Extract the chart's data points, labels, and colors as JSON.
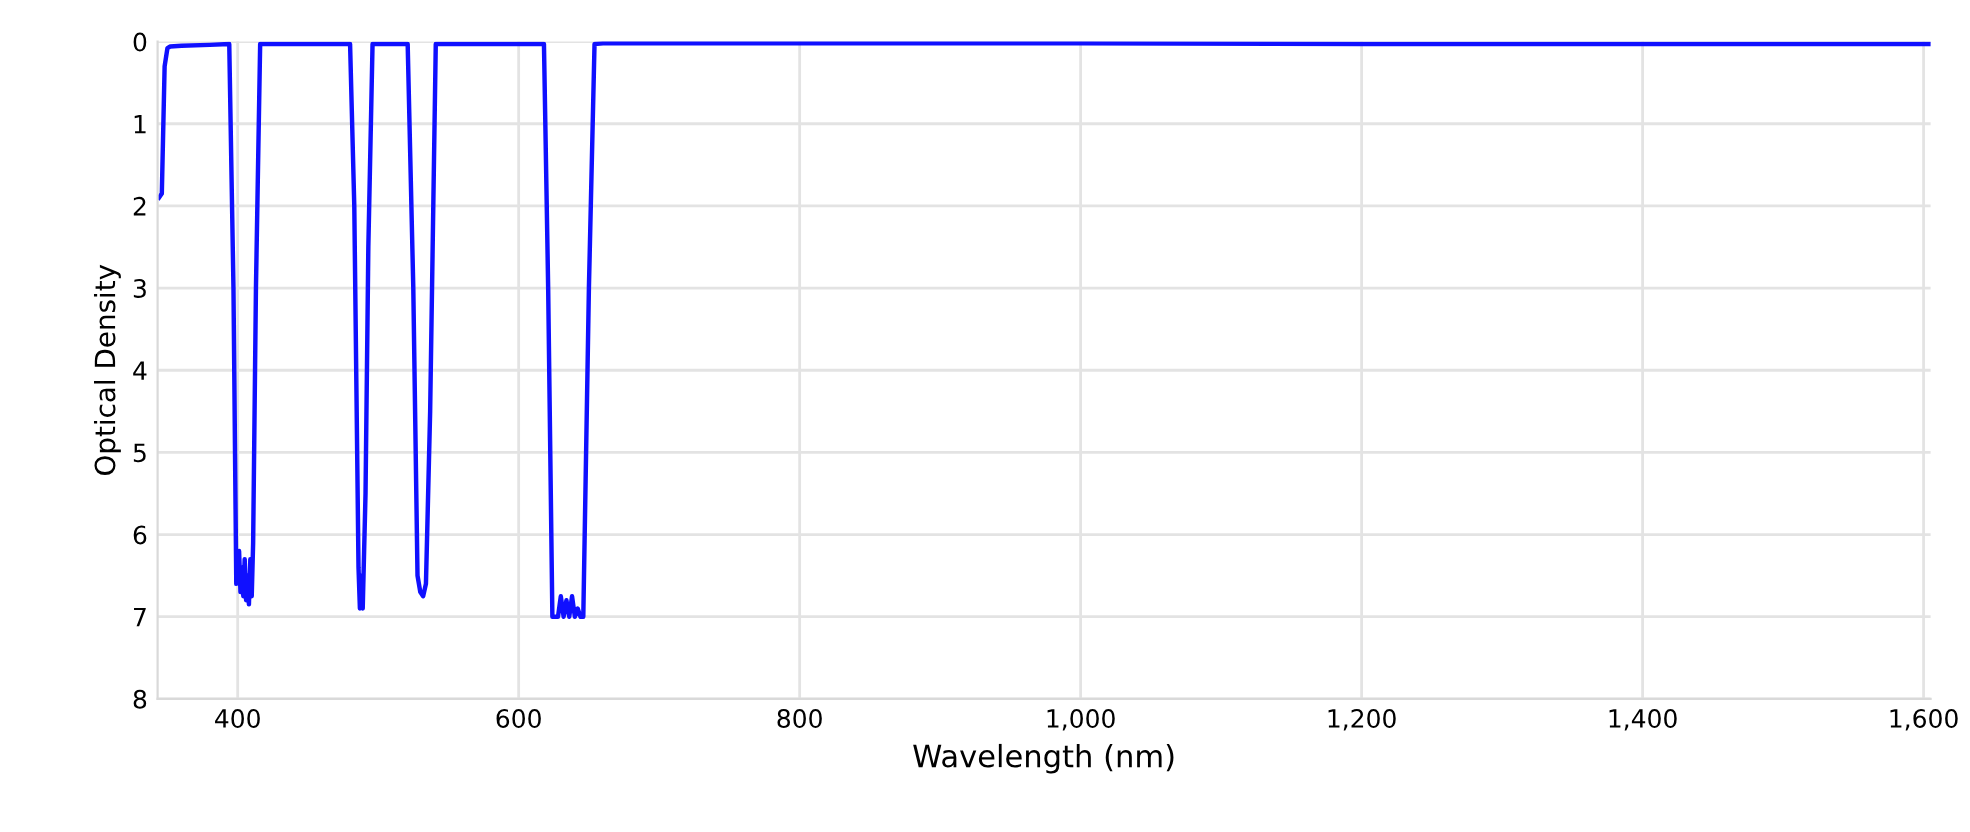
{
  "chart_data": {
    "type": "line",
    "xlabel": "Wavelength (nm)",
    "ylabel": "Optical Density",
    "series": [
      {
        "color": "#1010ff",
        "x": [
          344,
          346,
          348,
          350,
          352,
          360,
          380,
          394,
          397,
          399,
          401,
          402,
          403,
          404,
          405,
          406,
          407,
          408,
          409,
          410,
          411,
          413,
          416,
          440,
          480,
          483,
          486,
          487,
          488,
          489,
          490,
          491,
          493,
          496,
          500,
          521,
          525,
          528,
          530,
          532,
          534,
          537,
          541,
          545,
          580,
          618,
          621,
          624,
          628,
          630,
          632,
          634,
          636,
          638,
          640,
          642,
          644,
          646,
          650,
          654,
          660,
          800,
          1000,
          1200,
          1400,
          1604
        ],
        "values": [
          1.9,
          1.85,
          0.3,
          0.08,
          0.06,
          0.05,
          0.04,
          0.03,
          3.0,
          6.6,
          6.2,
          6.7,
          6.4,
          6.75,
          6.3,
          6.8,
          6.5,
          6.85,
          6.3,
          6.75,
          6.1,
          3.0,
          0.03,
          0.03,
          0.03,
          2.0,
          6.4,
          6.9,
          6.5,
          6.9,
          6.2,
          5.5,
          2.5,
          0.03,
          0.03,
          0.03,
          3.0,
          6.5,
          6.7,
          6.75,
          6.6,
          4.5,
          0.03,
          0.03,
          0.03,
          0.03,
          3.0,
          7.0,
          7.0,
          6.75,
          7.0,
          6.8,
          7.0,
          6.75,
          7.0,
          6.9,
          7.0,
          7.0,
          3.0,
          0.03,
          0.02,
          0.02,
          0.02,
          0.03,
          0.03,
          0.03
        ]
      }
    ],
    "xlim": [
      343,
      1605
    ],
    "ylim": [
      8,
      0
    ],
    "xticks": [
      {
        "value": 400,
        "label": "400"
      },
      {
        "value": 600,
        "label": "600"
      },
      {
        "value": 800,
        "label": "800"
      },
      {
        "value": 1000,
        "label": "1,000"
      },
      {
        "value": 1200,
        "label": "1,200"
      },
      {
        "value": 1400,
        "label": "1,400"
      },
      {
        "value": 1600,
        "label": "1,600"
      }
    ],
    "yticks": [
      0,
      1,
      2,
      3,
      4,
      5,
      6,
      7,
      8
    ],
    "grid": true,
    "legend": false,
    "marker": "none",
    "line_style": "solid"
  }
}
